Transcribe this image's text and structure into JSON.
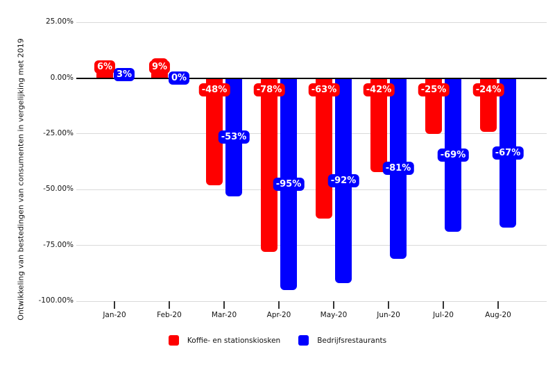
{
  "chart_data": {
    "type": "bar",
    "title": "",
    "xlabel": "",
    "ylabel": "Ontwikkeling van bestedingen van consumenten in vergelijking met 2019",
    "categories": [
      "Jan-20",
      "Feb-20",
      "Mar-20",
      "Apr-20",
      "May-20",
      "Jun-20",
      "Jul-20",
      "Aug-20"
    ],
    "series": [
      {
        "name": "Koffie- en stationskiosken",
        "color": "#fe0000",
        "values": [
          6,
          9,
          -48,
          -78,
          -63,
          -42,
          -25,
          -24
        ],
        "labels": [
          "6%",
          "9%",
          "-48%",
          "-78%",
          "-63%",
          "-42%",
          "-25%",
          "-24%"
        ],
        "label_placement": "inside-end"
      },
      {
        "name": "Bedrijfsrestaurants",
        "color": "#0100fe",
        "values": [
          3,
          0,
          -53,
          -95,
          -92,
          -81,
          -69,
          -67
        ],
        "labels": [
          "3%",
          "0%",
          "-53%",
          "-95%",
          "-92%",
          "-81%",
          "-69%",
          "-67%"
        ],
        "label_placement": "center"
      }
    ],
    "y_axis": {
      "tick_labels": [
        "25.00%",
        "0.00%",
        "-25.00%",
        "-50.00%",
        "-75.00%",
        "-100.00%"
      ],
      "tick_values": [
        25,
        0,
        -25,
        -50,
        -75,
        -100
      ],
      "ylim": [
        -100,
        25
      ]
    },
    "grid": true,
    "legend_position": "bottom"
  },
  "colors": {
    "grid": "#d9d9d9",
    "zero_line": "#000000",
    "tick_mark": "#333333",
    "axis_text": "#111111",
    "label_text": "#ffffff",
    "background": "#ffffff"
  }
}
